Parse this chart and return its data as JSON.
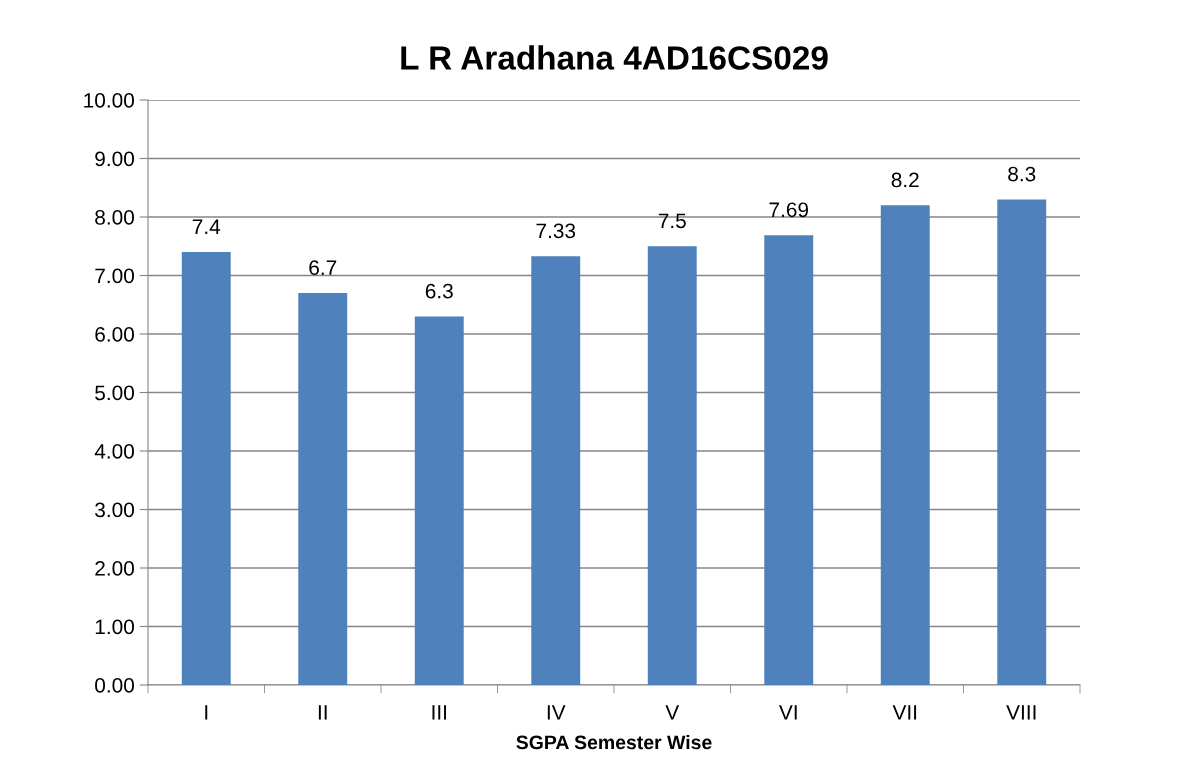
{
  "chart_data": {
    "type": "bar",
    "title": "L R Aradhana 4AD16CS029",
    "xlabel": "SGPA Semester Wise",
    "categories": [
      "I",
      "II",
      "III",
      "IV",
      "V",
      "VI",
      "VII",
      "VIII"
    ],
    "values": [
      7.4,
      6.7,
      6.3,
      7.33,
      7.5,
      7.69,
      8.2,
      8.3
    ],
    "color": "#4f81bd",
    "data_labels": true,
    "grid": "y",
    "legend": false,
    "ylim": [
      0,
      10
    ],
    "yticks": [
      {
        "value": 0,
        "label": "0.00"
      },
      {
        "value": 1,
        "label": "1.00"
      },
      {
        "value": 2,
        "label": "2.00"
      },
      {
        "value": 3,
        "label": "3.00"
      },
      {
        "value": 4,
        "label": "4.00"
      },
      {
        "value": 5,
        "label": "5.00"
      },
      {
        "value": 6,
        "label": "6.00"
      },
      {
        "value": 7,
        "label": "7.00"
      },
      {
        "value": 8,
        "label": "8.00"
      },
      {
        "value": 9,
        "label": "9.00"
      },
      {
        "value": 10,
        "label": "10.00"
      }
    ]
  }
}
